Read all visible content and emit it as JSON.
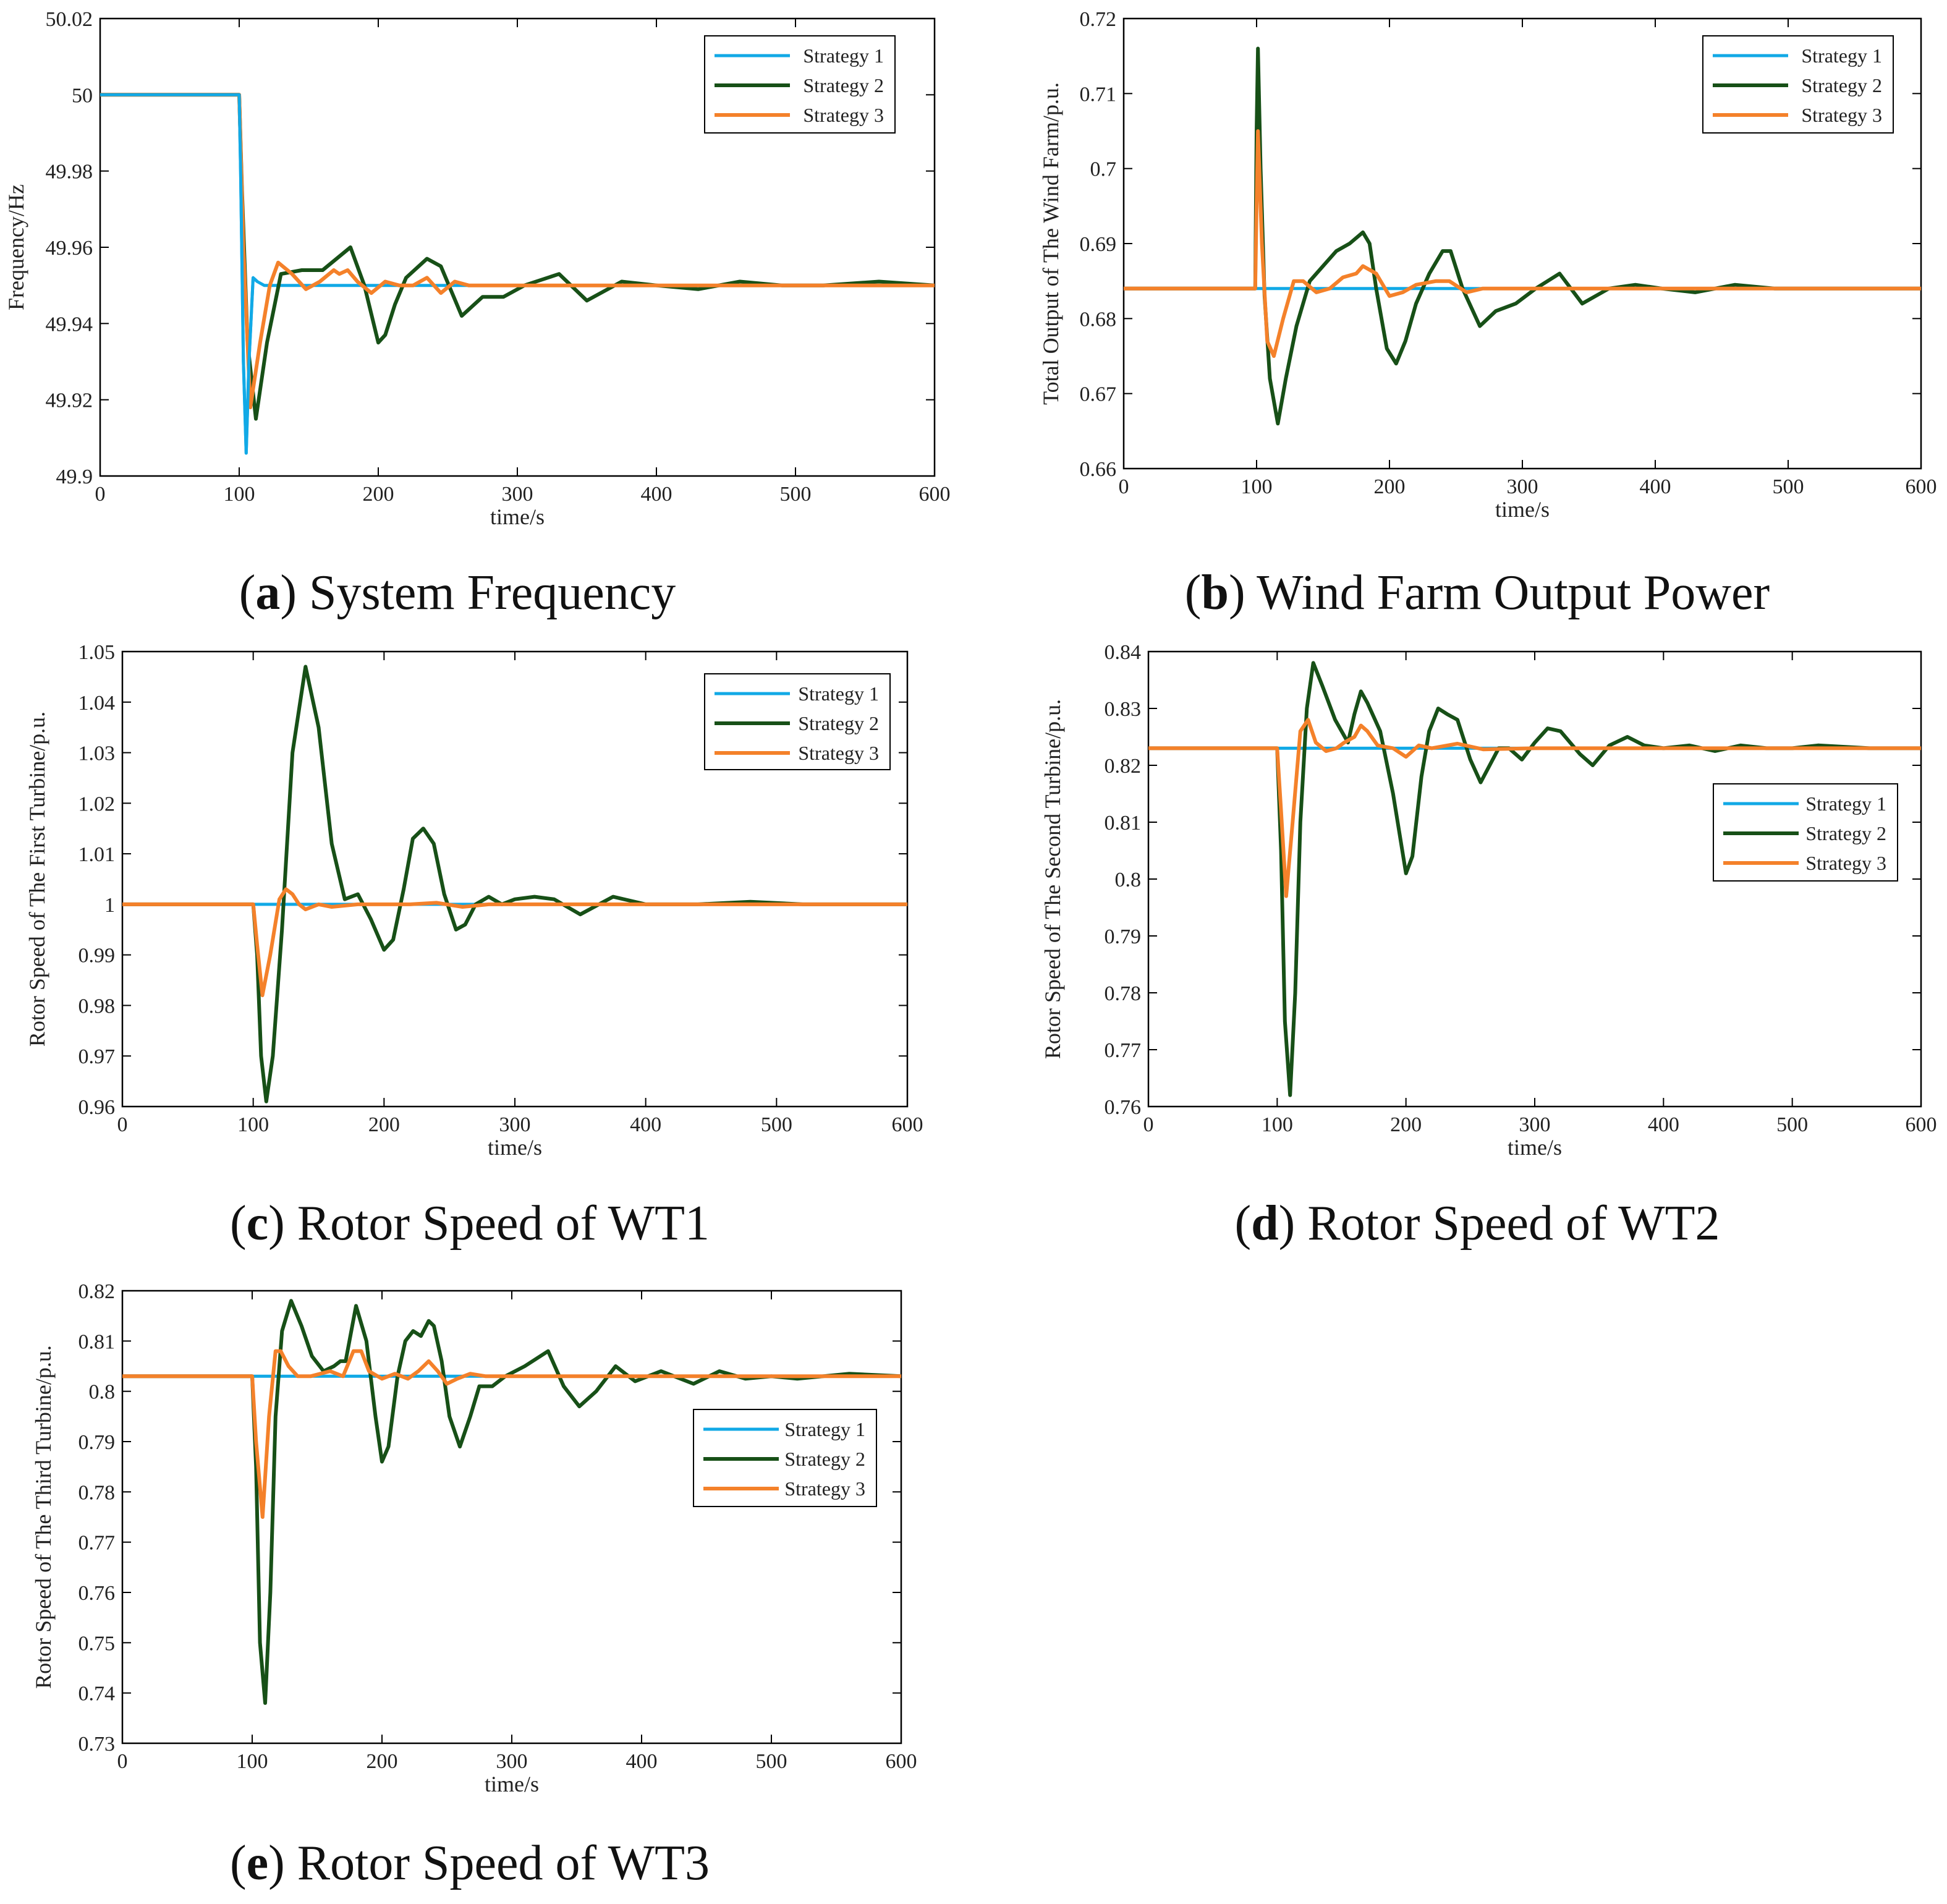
{
  "figure": {
    "colors": {
      "strategy1": "#11a9e6",
      "strategy2": "#175017",
      "strategy3": "#f4812a",
      "axis": "#000000"
    },
    "legend_entries": [
      "Strategy 1",
      "Strategy 2",
      "Strategy 3"
    ]
  },
  "chart_data": [
    {
      "id": "a",
      "type": "line",
      "caption_letter": "a",
      "caption_text": "System Frequency",
      "xlabel": "time/s",
      "ylabel": "Frequency/Hz",
      "xlim": [
        0,
        600
      ],
      "ylim": [
        49.9,
        50.02
      ],
      "xticks": [
        0,
        100,
        200,
        300,
        400,
        500,
        600
      ],
      "yticks": [
        49.9,
        49.92,
        49.94,
        49.96,
        49.98,
        50,
        50.02
      ],
      "ytick_labels": [
        "49.9",
        "49.92",
        "49.94",
        "49.96",
        "49.98",
        "50",
        "50.02"
      ],
      "legend_position": "top-right",
      "series": [
        {
          "name": "Strategy 1",
          "x": [
            0,
            100,
            101,
            103,
            105,
            107,
            110,
            113,
            118,
            130,
            600
          ],
          "y": [
            50,
            50,
            49.98,
            49.93,
            49.906,
            49.93,
            49.952,
            49.951,
            49.95,
            49.95,
            49.95
          ]
        },
        {
          "name": "Strategy 2",
          "x": [
            0,
            100,
            102,
            106,
            112,
            120,
            130,
            145,
            160,
            170,
            180,
            190,
            200,
            205,
            212,
            220,
            235,
            245,
            260,
            275,
            290,
            305,
            330,
            350,
            375,
            400,
            430,
            460,
            490,
            520,
            560,
            600
          ],
          "y": [
            50,
            50,
            49.975,
            49.935,
            49.915,
            49.935,
            49.953,
            49.954,
            49.954,
            49.957,
            49.96,
            49.95,
            49.935,
            49.937,
            49.945,
            49.952,
            49.957,
            49.955,
            49.942,
            49.947,
            49.947,
            49.95,
            49.953,
            49.946,
            49.951,
            49.95,
            49.949,
            49.951,
            49.95,
            49.95,
            49.951,
            49.95
          ]
        },
        {
          "name": "Strategy 3",
          "x": [
            0,
            100,
            103,
            108,
            115,
            122,
            128,
            138,
            148,
            158,
            168,
            172,
            178,
            185,
            195,
            205,
            215,
            225,
            235,
            245,
            255,
            265,
            280,
            300,
            340,
            600
          ],
          "y": [
            50,
            50,
            49.96,
            49.918,
            49.935,
            49.95,
            49.956,
            49.953,
            49.949,
            49.951,
            49.954,
            49.953,
            49.954,
            49.951,
            49.948,
            49.951,
            49.95,
            49.95,
            49.952,
            49.948,
            49.951,
            49.95,
            49.95,
            49.95,
            49.95,
            49.95
          ]
        }
      ]
    },
    {
      "id": "b",
      "type": "line",
      "caption_letter": "b",
      "caption_text": "Wind Farm Output Power",
      "xlabel": "time/s",
      "ylabel": "Total Output of The Wind Farm/p.u.",
      "xlim": [
        0,
        600
      ],
      "ylim": [
        0.66,
        0.72
      ],
      "xticks": [
        0,
        100,
        200,
        300,
        400,
        500,
        600
      ],
      "yticks": [
        0.66,
        0.67,
        0.68,
        0.69,
        0.7,
        0.71,
        0.72
      ],
      "ytick_labels": [
        "0.66",
        "0.67",
        "0.68",
        "0.69",
        "0.7",
        "0.71",
        "0.72"
      ],
      "legend_position": "top-right",
      "series": [
        {
          "name": "Strategy 1",
          "x": [
            0,
            600
          ],
          "y": [
            0.684,
            0.684
          ]
        },
        {
          "name": "Strategy 2",
          "x": [
            0,
            99,
            100,
            101,
            103,
            106,
            110,
            116,
            122,
            130,
            140,
            150,
            160,
            170,
            180,
            185,
            190,
            198,
            205,
            212,
            220,
            230,
            240,
            246,
            255,
            268,
            280,
            295,
            310,
            328,
            345,
            365,
            385,
            405,
            430,
            460,
            490,
            520,
            560,
            600
          ],
          "y": [
            0.684,
            0.684,
            0.705,
            0.716,
            0.7,
            0.683,
            0.672,
            0.666,
            0.672,
            0.679,
            0.685,
            0.687,
            0.689,
            0.69,
            0.6915,
            0.69,
            0.684,
            0.676,
            0.674,
            0.677,
            0.682,
            0.686,
            0.689,
            0.689,
            0.684,
            0.679,
            0.681,
            0.682,
            0.684,
            0.686,
            0.682,
            0.684,
            0.6845,
            0.684,
            0.6835,
            0.6845,
            0.684,
            0.684,
            0.684,
            0.684
          ]
        },
        {
          "name": "Strategy 3",
          "x": [
            0,
            99,
            100,
            101,
            104,
            108,
            113,
            120,
            128,
            135,
            145,
            155,
            165,
            175,
            180,
            190,
            200,
            210,
            220,
            235,
            245,
            258,
            270,
            300,
            600
          ],
          "y": [
            0.684,
            0.684,
            0.695,
            0.705,
            0.69,
            0.677,
            0.675,
            0.68,
            0.685,
            0.685,
            0.6835,
            0.684,
            0.6855,
            0.686,
            0.687,
            0.686,
            0.683,
            0.6835,
            0.6845,
            0.685,
            0.685,
            0.6835,
            0.684,
            0.684,
            0.684
          ]
        }
      ]
    },
    {
      "id": "c",
      "type": "line",
      "caption_letter": "c",
      "caption_text": "Rotor Speed of WT1",
      "xlabel": "time/s",
      "ylabel": "Rotor Speed of The First Turbine/p.u.",
      "xlim": [
        0,
        600
      ],
      "ylim": [
        0.96,
        1.05
      ],
      "xticks": [
        0,
        100,
        200,
        300,
        400,
        500,
        600
      ],
      "yticks": [
        0.96,
        0.97,
        0.98,
        0.99,
        1,
        1.01,
        1.02,
        1.03,
        1.04,
        1.05
      ],
      "ytick_labels": [
        "0.96",
        "0.97",
        "0.98",
        "0.99",
        "1",
        "1.01",
        "1.02",
        "1.03",
        "1.04",
        "1.05"
      ],
      "legend_position": "top-right",
      "series": [
        {
          "name": "Strategy 1",
          "x": [
            0,
            600
          ],
          "y": [
            1,
            1
          ]
        },
        {
          "name": "Strategy 2",
          "x": [
            0,
            100,
            103,
            106,
            110,
            115,
            122,
            130,
            140,
            150,
            160,
            170,
            180,
            190,
            200,
            207,
            215,
            222,
            230,
            238,
            246,
            255,
            262,
            270,
            280,
            290,
            300,
            315,
            330,
            350,
            375,
            400,
            440,
            480,
            520,
            560,
            600
          ],
          "y": [
            1,
            1,
            0.99,
            0.97,
            0.961,
            0.97,
            0.995,
            1.03,
            1.047,
            1.035,
            1.012,
            1.001,
            1.002,
            0.997,
            0.991,
            0.993,
            1.003,
            1.013,
            1.015,
            1.012,
            1.002,
            0.995,
            0.996,
            1.0,
            1.0015,
            1.0,
            1.001,
            1.0015,
            1.001,
            0.998,
            1.0015,
            1.0,
            1.0,
            1.0005,
            1.0,
            1.0,
            1.0
          ]
        },
        {
          "name": "Strategy 3",
          "x": [
            0,
            100,
            103,
            107,
            113,
            120,
            125,
            130,
            135,
            140,
            150,
            160,
            180,
            200,
            220,
            240,
            260,
            280,
            300,
            600
          ],
          "y": [
            1,
            1,
            0.992,
            0.982,
            0.99,
            1.001,
            1.003,
            1.002,
            1.0,
            0.999,
            1.0,
            0.9995,
            1.0,
            1.0,
            1.0,
            1.0003,
            0.9995,
            1.0,
            1.0,
            1.0
          ]
        }
      ]
    },
    {
      "id": "d",
      "type": "line",
      "caption_letter": "d",
      "caption_text": "Rotor Speed of WT2",
      "xlabel": "time/s",
      "ylabel": "Rotor Speed of The Second Turbine/p.u.",
      "xlim": [
        0,
        600
      ],
      "ylim": [
        0.76,
        0.84
      ],
      "xticks": [
        0,
        100,
        200,
        300,
        400,
        500,
        600
      ],
      "yticks": [
        0.76,
        0.77,
        0.78,
        0.79,
        0.8,
        0.81,
        0.82,
        0.83,
        0.84
      ],
      "ytick_labels": [
        "0.76",
        "0.77",
        "0.78",
        "0.79",
        "0.8",
        "0.81",
        "0.82",
        "0.83",
        "0.84"
      ],
      "legend_position": "middle-right",
      "series": [
        {
          "name": "Strategy 1",
          "x": [
            0,
            600
          ],
          "y": [
            0.823,
            0.823
          ]
        },
        {
          "name": "Strategy 2",
          "x": [
            0,
            100,
            103,
            106,
            110,
            114,
            118,
            123,
            128,
            135,
            145,
            155,
            160,
            165,
            170,
            180,
            190,
            200,
            205,
            212,
            218,
            225,
            232,
            240,
            250,
            258,
            265,
            272,
            280,
            290,
            300,
            310,
            320,
            335,
            345,
            358,
            372,
            385,
            400,
            420,
            440,
            460,
            480,
            500,
            520,
            560,
            600
          ],
          "y": [
            0.823,
            0.823,
            0.805,
            0.775,
            0.762,
            0.78,
            0.81,
            0.83,
            0.838,
            0.834,
            0.828,
            0.824,
            0.829,
            0.833,
            0.831,
            0.826,
            0.815,
            0.801,
            0.804,
            0.818,
            0.826,
            0.83,
            0.829,
            0.828,
            0.821,
            0.817,
            0.82,
            0.823,
            0.823,
            0.821,
            0.824,
            0.8265,
            0.826,
            0.822,
            0.82,
            0.8235,
            0.825,
            0.8235,
            0.823,
            0.8235,
            0.8225,
            0.8235,
            0.823,
            0.823,
            0.8235,
            0.823,
            0.823
          ]
        },
        {
          "name": "Strategy 3",
          "x": [
            0,
            100,
            103,
            107,
            112,
            118,
            124,
            130,
            138,
            146,
            152,
            160,
            165,
            170,
            178,
            190,
            200,
            210,
            220,
            240,
            260,
            300,
            600
          ],
          "y": [
            0.823,
            0.823,
            0.812,
            0.797,
            0.81,
            0.826,
            0.828,
            0.824,
            0.8225,
            0.823,
            0.824,
            0.825,
            0.827,
            0.826,
            0.8235,
            0.823,
            0.8215,
            0.8235,
            0.823,
            0.8238,
            0.8228,
            0.823,
            0.823
          ]
        }
      ]
    },
    {
      "id": "e",
      "type": "line",
      "caption_letter": "e",
      "caption_text": "Rotor Speed of WT3",
      "xlabel": "time/s",
      "ylabel": "Rotor Speed of The Third Turbine/p.u.",
      "xlim": [
        0,
        600
      ],
      "ylim": [
        0.73,
        0.82
      ],
      "xticks": [
        0,
        100,
        200,
        300,
        400,
        500,
        600
      ],
      "yticks": [
        0.73,
        0.74,
        0.75,
        0.76,
        0.77,
        0.78,
        0.79,
        0.8,
        0.81,
        0.82
      ],
      "ytick_labels": [
        "0.73",
        "0.74",
        "0.75",
        "0.76",
        "0.77",
        "0.78",
        "0.79",
        "0.8",
        "0.81",
        "0.82"
      ],
      "legend_position": "middle-right",
      "series": [
        {
          "name": "Strategy 1",
          "x": [
            0,
            600
          ],
          "y": [
            0.803,
            0.803
          ]
        },
        {
          "name": "Strategy 2",
          "x": [
            0,
            100,
            103,
            106,
            110,
            114,
            118,
            123,
            130,
            138,
            146,
            155,
            163,
            168,
            172,
            180,
            188,
            195,
            200,
            205,
            212,
            218,
            224,
            230,
            236,
            240,
            246,
            252,
            260,
            268,
            275,
            285,
            295,
            310,
            328,
            340,
            352,
            365,
            380,
            395,
            415,
            440,
            460,
            480,
            500,
            520,
            560,
            600
          ],
          "y": [
            0.803,
            0.803,
            0.785,
            0.75,
            0.738,
            0.76,
            0.795,
            0.812,
            0.818,
            0.813,
            0.807,
            0.804,
            0.805,
            0.806,
            0.806,
            0.817,
            0.81,
            0.795,
            0.786,
            0.789,
            0.803,
            0.81,
            0.812,
            0.811,
            0.814,
            0.813,
            0.806,
            0.795,
            0.789,
            0.795,
            0.801,
            0.801,
            0.803,
            0.805,
            0.808,
            0.801,
            0.797,
            0.8,
            0.805,
            0.802,
            0.804,
            0.8015,
            0.804,
            0.8025,
            0.803,
            0.8025,
            0.8035,
            0.803
          ]
        },
        {
          "name": "Strategy 3",
          "x": [
            0,
            100,
            103,
            108,
            113,
            118,
            122,
            128,
            135,
            145,
            160,
            170,
            178,
            184,
            190,
            200,
            210,
            220,
            228,
            236,
            243,
            250,
            258,
            268,
            280,
            300,
            600
          ],
          "y": [
            0.803,
            0.803,
            0.79,
            0.775,
            0.795,
            0.808,
            0.808,
            0.805,
            0.803,
            0.803,
            0.804,
            0.803,
            0.808,
            0.808,
            0.804,
            0.8025,
            0.8035,
            0.8025,
            0.804,
            0.806,
            0.804,
            0.8015,
            0.8025,
            0.8035,
            0.803,
            0.803,
            0.803
          ]
        }
      ]
    }
  ]
}
